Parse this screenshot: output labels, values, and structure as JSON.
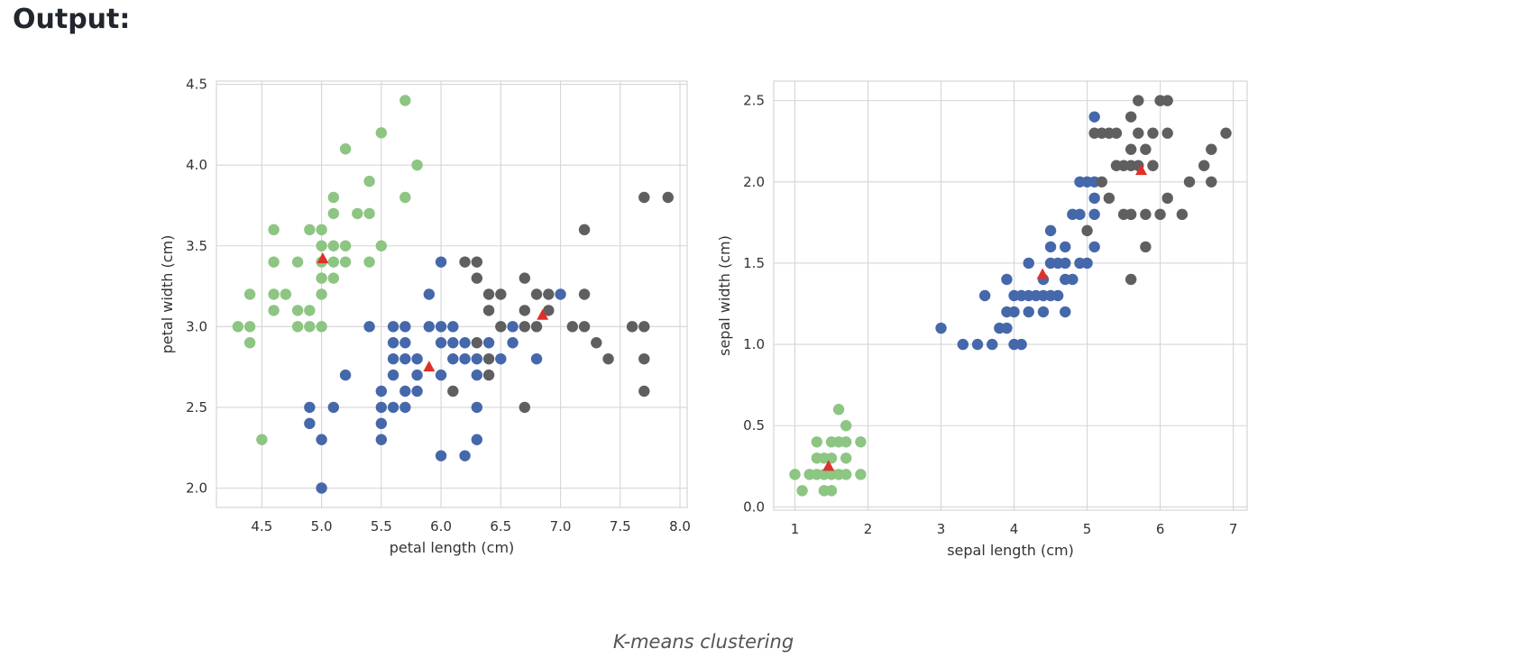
{
  "heading": "Output:",
  "caption": "K-means clustering",
  "colors": {
    "cluster_0": "#8dc583",
    "cluster_1": "#4568ab",
    "cluster_2": "#5f5f5f",
    "centroid": "#e0302a",
    "grid": "#d5d5d5"
  },
  "chart_data": [
    {
      "type": "scatter",
      "xlabel": "petal length (cm)",
      "ylabel": "petal width (cm)",
      "xlim": [
        4.12,
        8.06
      ],
      "ylim": [
        1.88,
        4.52
      ],
      "xticks": [
        "4.5",
        "5.0",
        "5.5",
        "6.0",
        "6.5",
        "7.0",
        "7.5",
        "8.0"
      ],
      "yticks": [
        "2.0",
        "2.5",
        "3.0",
        "3.5",
        "4.0",
        "4.5"
      ],
      "grid": true,
      "series": [
        {
          "color": "#8dc583",
          "points": [
            [
              4.3,
              3.0
            ],
            [
              4.4,
              3.0
            ],
            [
              4.4,
              2.9
            ],
            [
              4.4,
              3.2
            ],
            [
              4.5,
              2.3
            ],
            [
              4.6,
              3.6
            ],
            [
              4.6,
              3.4
            ],
            [
              4.6,
              3.2
            ],
            [
              4.6,
              3.1
            ],
            [
              4.7,
              3.2
            ],
            [
              4.8,
              3.4
            ],
            [
              4.8,
              3.1
            ],
            [
              4.8,
              3.0
            ],
            [
              4.9,
              3.6
            ],
            [
              4.9,
              3.1
            ],
            [
              4.9,
              3.0
            ],
            [
              5.0,
              3.6
            ],
            [
              5.0,
              3.5
            ],
            [
              5.0,
              3.4
            ],
            [
              5.0,
              3.3
            ],
            [
              5.0,
              3.2
            ],
            [
              5.0,
              3.0
            ],
            [
              5.1,
              3.8
            ],
            [
              5.1,
              3.7
            ],
            [
              5.1,
              3.5
            ],
            [
              5.1,
              3.4
            ],
            [
              5.1,
              3.3
            ],
            [
              5.2,
              4.1
            ],
            [
              5.2,
              3.5
            ],
            [
              5.2,
              3.4
            ],
            [
              5.3,
              3.7
            ],
            [
              5.4,
              3.9
            ],
            [
              5.4,
              3.7
            ],
            [
              5.4,
              3.4
            ],
            [
              5.5,
              4.2
            ],
            [
              5.5,
              3.5
            ],
            [
              5.7,
              4.4
            ],
            [
              5.7,
              3.8
            ],
            [
              5.8,
              4.0
            ]
          ]
        },
        {
          "color": "#4568ab",
          "points": [
            [
              4.9,
              2.5
            ],
            [
              4.9,
              2.4
            ],
            [
              5.0,
              2.3
            ],
            [
              5.0,
              2.0
            ],
            [
              5.1,
              2.5
            ],
            [
              5.2,
              2.7
            ],
            [
              5.4,
              3.0
            ],
            [
              5.5,
              2.6
            ],
            [
              5.5,
              2.5
            ],
            [
              5.5,
              2.4
            ],
            [
              5.5,
              2.3
            ],
            [
              5.6,
              3.0
            ],
            [
              5.6,
              2.9
            ],
            [
              5.6,
              2.8
            ],
            [
              5.6,
              2.7
            ],
            [
              5.6,
              2.5
            ],
            [
              5.7,
              3.0
            ],
            [
              5.7,
              2.9
            ],
            [
              5.7,
              2.8
            ],
            [
              5.7,
              2.6
            ],
            [
              5.7,
              2.5
            ],
            [
              5.8,
              2.8
            ],
            [
              5.8,
              2.7
            ],
            [
              5.8,
              2.6
            ],
            [
              5.9,
              3.2
            ],
            [
              5.9,
              3.0
            ],
            [
              6.0,
              3.4
            ],
            [
              6.0,
              3.0
            ],
            [
              6.0,
              2.9
            ],
            [
              6.0,
              2.7
            ],
            [
              6.0,
              2.2
            ],
            [
              6.1,
              3.0
            ],
            [
              6.1,
              2.9
            ],
            [
              6.1,
              2.8
            ],
            [
              6.2,
              2.9
            ],
            [
              6.2,
              2.8
            ],
            [
              6.2,
              2.2
            ],
            [
              6.3,
              2.8
            ],
            [
              6.3,
              2.7
            ],
            [
              6.3,
              2.5
            ],
            [
              6.3,
              2.3
            ],
            [
              6.4,
              2.9
            ],
            [
              6.5,
              2.8
            ],
            [
              6.6,
              3.0
            ],
            [
              6.6,
              2.9
            ],
            [
              6.8,
              2.8
            ],
            [
              7.0,
              3.2
            ]
          ]
        },
        {
          "color": "#5f5f5f",
          "points": [
            [
              6.1,
              2.6
            ],
            [
              6.2,
              3.4
            ],
            [
              6.3,
              3.4
            ],
            [
              6.3,
              3.3
            ],
            [
              6.3,
              2.9
            ],
            [
              6.4,
              3.2
            ],
            [
              6.4,
              3.1
            ],
            [
              6.4,
              2.8
            ],
            [
              6.4,
              2.7
            ],
            [
              6.5,
              3.2
            ],
            [
              6.5,
              3.0
            ],
            [
              6.7,
              3.3
            ],
            [
              6.7,
              3.1
            ],
            [
              6.7,
              3.0
            ],
            [
              6.7,
              2.5
            ],
            [
              6.8,
              3.2
            ],
            [
              6.8,
              3.0
            ],
            [
              6.9,
              3.2
            ],
            [
              6.9,
              3.1
            ],
            [
              7.1,
              3.0
            ],
            [
              7.2,
              3.6
            ],
            [
              7.2,
              3.2
            ],
            [
              7.2,
              3.0
            ],
            [
              7.3,
              2.9
            ],
            [
              7.4,
              2.8
            ],
            [
              7.6,
              3.0
            ],
            [
              7.7,
              3.8
            ],
            [
              7.7,
              3.0
            ],
            [
              7.7,
              2.8
            ],
            [
              7.7,
              2.6
            ],
            [
              7.9,
              3.8
            ]
          ]
        }
      ],
      "centroids": [
        [
          5.01,
          3.42
        ],
        [
          5.9,
          2.75
        ],
        [
          6.85,
          3.07
        ]
      ]
    },
    {
      "type": "scatter",
      "xlabel": "sepal length (cm)",
      "ylabel": "sepal width (cm)",
      "xlim": [
        0.71,
        7.19
      ],
      "ylim": [
        -0.02,
        2.62
      ],
      "xticks": [
        "1",
        "2",
        "3",
        "4",
        "5",
        "6",
        "7"
      ],
      "yticks": [
        "0.0",
        "0.5",
        "1.0",
        "1.5",
        "2.0",
        "2.5"
      ],
      "grid": true,
      "series": [
        {
          "color": "#8dc583",
          "points": [
            [
              1.0,
              0.2
            ],
            [
              1.1,
              0.1
            ],
            [
              1.2,
              0.2
            ],
            [
              1.3,
              0.2
            ],
            [
              1.3,
              0.3
            ],
            [
              1.3,
              0.4
            ],
            [
              1.4,
              0.1
            ],
            [
              1.4,
              0.2
            ],
            [
              1.4,
              0.3
            ],
            [
              1.5,
              0.1
            ],
            [
              1.5,
              0.2
            ],
            [
              1.5,
              0.3
            ],
            [
              1.5,
              0.4
            ],
            [
              1.6,
              0.2
            ],
            [
              1.6,
              0.4
            ],
            [
              1.6,
              0.6
            ],
            [
              1.7,
              0.2
            ],
            [
              1.7,
              0.3
            ],
            [
              1.7,
              0.4
            ],
            [
              1.7,
              0.5
            ],
            [
              1.9,
              0.2
            ],
            [
              1.9,
              0.4
            ]
          ]
        },
        {
          "color": "#4568ab",
          "points": [
            [
              3.0,
              1.1
            ],
            [
              3.3,
              1.0
            ],
            [
              3.5,
              1.0
            ],
            [
              3.6,
              1.3
            ],
            [
              3.7,
              1.0
            ],
            [
              3.8,
              1.1
            ],
            [
              3.9,
              1.1
            ],
            [
              3.9,
              1.2
            ],
            [
              3.9,
              1.4
            ],
            [
              4.0,
              1.0
            ],
            [
              4.0,
              1.2
            ],
            [
              4.0,
              1.3
            ],
            [
              4.1,
              1.0
            ],
            [
              4.1,
              1.3
            ],
            [
              4.2,
              1.2
            ],
            [
              4.2,
              1.3
            ],
            [
              4.2,
              1.5
            ],
            [
              4.3,
              1.3
            ],
            [
              4.4,
              1.2
            ],
            [
              4.4,
              1.3
            ],
            [
              4.4,
              1.4
            ],
            [
              4.5,
              1.3
            ],
            [
              4.5,
              1.5
            ],
            [
              4.5,
              1.6
            ],
            [
              4.5,
              1.7
            ],
            [
              4.6,
              1.3
            ],
            [
              4.6,
              1.5
            ],
            [
              4.7,
              1.2
            ],
            [
              4.7,
              1.4
            ],
            [
              4.7,
              1.5
            ],
            [
              4.7,
              1.6
            ],
            [
              4.8,
              1.4
            ],
            [
              4.8,
              1.8
            ],
            [
              4.9,
              1.5
            ],
            [
              4.9,
              1.8
            ],
            [
              4.9,
              2.0
            ],
            [
              5.0,
              1.5
            ],
            [
              5.0,
              2.0
            ],
            [
              5.1,
              1.6
            ],
            [
              5.1,
              1.8
            ],
            [
              5.1,
              1.9
            ],
            [
              5.1,
              2.0
            ],
            [
              5.1,
              2.4
            ]
          ]
        },
        {
          "color": "#5f5f5f",
          "points": [
            [
              5.0,
              1.7
            ],
            [
              5.1,
              2.3
            ],
            [
              5.2,
              2.0
            ],
            [
              5.2,
              2.3
            ],
            [
              5.3,
              1.9
            ],
            [
              5.3,
              2.3
            ],
            [
              5.4,
              2.1
            ],
            [
              5.4,
              2.3
            ],
            [
              5.5,
              1.8
            ],
            [
              5.5,
              2.1
            ],
            [
              5.6,
              1.4
            ],
            [
              5.6,
              1.8
            ],
            [
              5.6,
              2.1
            ],
            [
              5.6,
              2.2
            ],
            [
              5.6,
              2.4
            ],
            [
              5.7,
              2.1
            ],
            [
              5.7,
              2.3
            ],
            [
              5.7,
              2.5
            ],
            [
              5.8,
              1.6
            ],
            [
              5.8,
              1.8
            ],
            [
              5.8,
              2.2
            ],
            [
              5.9,
              2.1
            ],
            [
              5.9,
              2.3
            ],
            [
              6.0,
              1.8
            ],
            [
              6.0,
              2.5
            ],
            [
              6.1,
              1.9
            ],
            [
              6.1,
              2.3
            ],
            [
              6.1,
              2.5
            ],
            [
              6.3,
              1.8
            ],
            [
              6.4,
              2.0
            ],
            [
              6.6,
              2.1
            ],
            [
              6.7,
              2.0
            ],
            [
              6.7,
              2.2
            ],
            [
              6.9,
              2.3
            ]
          ]
        }
      ],
      "centroids": [
        [
          1.46,
          0.25
        ],
        [
          4.39,
          1.43
        ],
        [
          5.74,
          2.07
        ]
      ]
    }
  ]
}
